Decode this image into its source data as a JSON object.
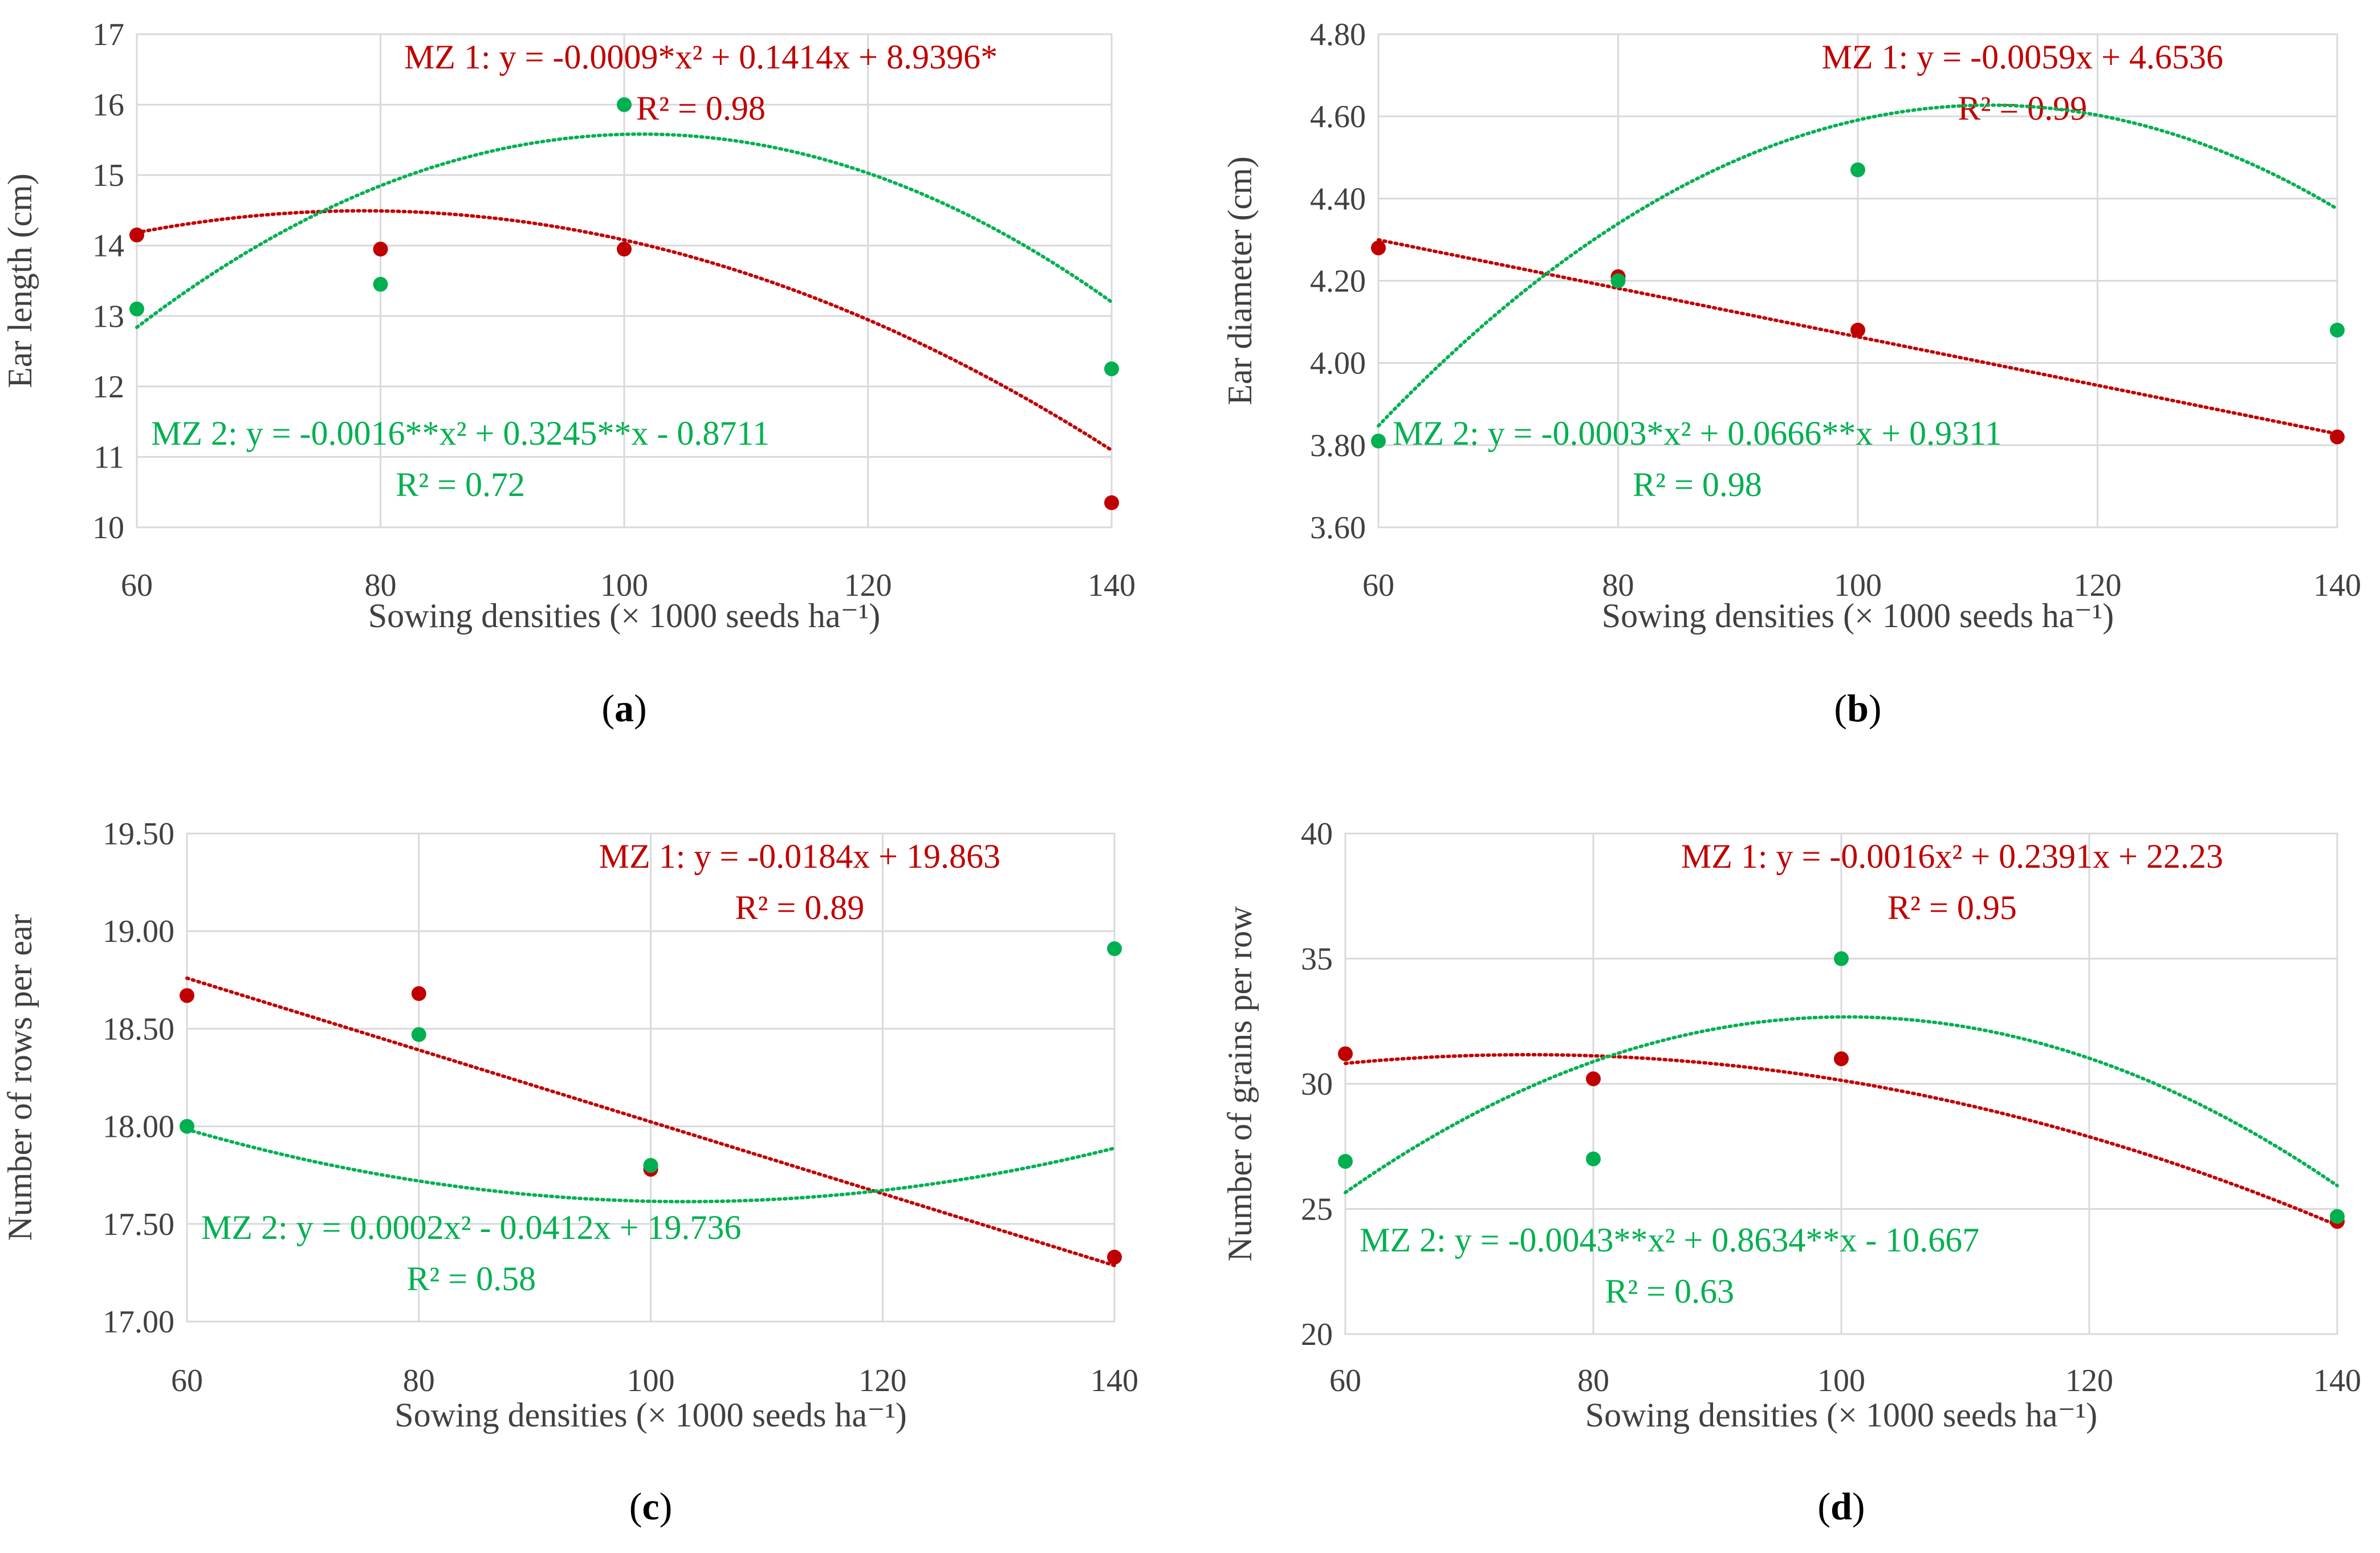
{
  "colors": {
    "mz1": "#c00000",
    "mz2": "#00b050",
    "grid": "#d9d9d9",
    "axis_text": "#404040",
    "caption": "#000000"
  },
  "chart_data": [
    {
      "id": "a",
      "type": "scatter",
      "caption_letter": "a",
      "xlabel": "Sowing densities (× 1000 seeds ha⁻¹)",
      "ylabel": "Ear length (cm)",
      "xlim": [
        60,
        140
      ],
      "ylim": [
        10,
        17
      ],
      "xticks": [
        60,
        80,
        100,
        120,
        140
      ],
      "xtick_labels": [
        "60",
        "80",
        "100",
        "120",
        "140"
      ],
      "yticks": [
        10,
        11,
        12,
        13,
        14,
        15,
        16,
        17
      ],
      "ytick_labels": [
        "10",
        "11",
        "12",
        "13",
        "14",
        "15",
        "16",
        "17"
      ],
      "series": [
        {
          "name": "MZ 1",
          "color": "#c00000",
          "x": [
            60,
            80,
            100,
            140
          ],
          "y": [
            14.15,
            13.95,
            13.95,
            10.35
          ],
          "fit": {
            "type": "poly2",
            "a": -0.0009,
            "b": 0.1414,
            "c": 8.9396
          },
          "equation": "MZ 1: y = -0.0009*x² + 0.1414x + 8.9396*",
          "r2": "R² = 0.98",
          "label_pos": "top-right"
        },
        {
          "name": "MZ 2",
          "color": "#00b050",
          "x": [
            60,
            80,
            100,
            140
          ],
          "y": [
            13.1,
            13.45,
            16.0,
            12.25
          ],
          "fit": {
            "type": "poly2",
            "a": -0.0016,
            "b": 0.3245,
            "c": -0.8711
          },
          "equation": "MZ 2: y = -0.0016**x² + 0.3245**x - 0.8711",
          "r2": "R² = 0.72",
          "label_pos": "bottom-left"
        }
      ]
    },
    {
      "id": "b",
      "type": "scatter",
      "caption_letter": "b",
      "xlabel": "Sowing densities (× 1000 seeds ha⁻¹)",
      "ylabel": "Ear diameter (cm)",
      "xlim": [
        60,
        140
      ],
      "ylim": [
        3.6,
        4.8
      ],
      "xticks": [
        60,
        80,
        100,
        120,
        140
      ],
      "xtick_labels": [
        "60",
        "80",
        "100",
        "120",
        "140"
      ],
      "yticks": [
        3.6,
        3.8,
        4.0,
        4.2,
        4.4,
        4.6,
        4.8
      ],
      "ytick_labels": [
        "3.60",
        "3.80",
        "4.00",
        "4.20",
        "4.40",
        "4.60",
        "4.80"
      ],
      "series": [
        {
          "name": "MZ 1",
          "color": "#c00000",
          "x": [
            60,
            80,
            100,
            140
          ],
          "y": [
            4.28,
            4.21,
            4.08,
            3.82
          ],
          "fit": {
            "type": "linear",
            "m": -0.0059,
            "c": 4.6536
          },
          "equation": "MZ 1: y = -0.0059x + 4.6536",
          "r2": "R² = 0.99",
          "label_pos": "top-right"
        },
        {
          "name": "MZ 2",
          "color": "#00b050",
          "x": [
            60,
            80,
            100,
            140
          ],
          "y": [
            3.81,
            4.2,
            4.47,
            4.08
          ],
          "fit": {
            "type": "poly2",
            "a": -0.0003,
            "b": 0.0666,
            "c": 0.9311
          },
          "equation": "MZ 2: y = -0.0003*x² + 0.0666**x + 0.9311",
          "r2": "R² = 0.98",
          "label_pos": "bottom-left"
        }
      ]
    },
    {
      "id": "c",
      "type": "scatter",
      "caption_letter": "c",
      "xlabel": "Sowing densities (× 1000 seeds ha⁻¹)",
      "ylabel": "Number of rows per ear",
      "xlim": [
        60,
        140
      ],
      "ylim": [
        17,
        19.5
      ],
      "xticks": [
        60,
        80,
        100,
        120,
        140
      ],
      "xtick_labels": [
        "60",
        "80",
        "100",
        "120",
        "140"
      ],
      "yticks": [
        17,
        17.5,
        18,
        18.5,
        19,
        19.5
      ],
      "ytick_labels": [
        "17.00",
        "17.50",
        "18.00",
        "18.50",
        "19.00",
        "19.50"
      ],
      "series": [
        {
          "name": "MZ 1",
          "color": "#c00000",
          "x": [
            60,
            80,
            100,
            140
          ],
          "y": [
            18.67,
            18.68,
            17.78,
            17.33
          ],
          "fit": {
            "type": "linear",
            "m": -0.0184,
            "c": 19.863
          },
          "equation": "MZ 1: y = -0.0184x + 19.863",
          "r2": "R² = 0.89",
          "label_pos": "top-right"
        },
        {
          "name": "MZ 2",
          "color": "#00b050",
          "x": [
            60,
            80,
            100,
            140
          ],
          "y": [
            18.0,
            18.47,
            17.8,
            18.91
          ],
          "fit": {
            "type": "poly2",
            "a": 0.0002,
            "b": -0.0412,
            "c": 19.736
          },
          "equation": "MZ 2: y = 0.0002x² - 0.0412x + 19.736",
          "r2": "R² = 0.58",
          "label_pos": "bottom-left"
        }
      ]
    },
    {
      "id": "d",
      "type": "scatter",
      "caption_letter": "d",
      "xlabel": "Sowing densities (× 1000 seeds ha⁻¹)",
      "ylabel": "Number of grains per row",
      "xlim": [
        60,
        140
      ],
      "ylim": [
        20,
        40
      ],
      "xticks": [
        60,
        80,
        100,
        120,
        140
      ],
      "xtick_labels": [
        "60",
        "80",
        "100",
        "120",
        "140"
      ],
      "yticks": [
        20,
        25,
        30,
        35,
        40
      ],
      "ytick_labels": [
        "20",
        "25",
        "30",
        "35",
        "40"
      ],
      "series": [
        {
          "name": "MZ 1",
          "color": "#c00000",
          "x": [
            60,
            80,
            100,
            140
          ],
          "y": [
            31.2,
            30.2,
            31.0,
            24.5
          ],
          "fit": {
            "type": "poly2",
            "a": -0.0016,
            "b": 0.2391,
            "c": 22.23
          },
          "equation": "MZ 1: y = -0.0016x² + 0.2391x + 22.23",
          "r2": "R² = 0.95",
          "label_pos": "top-right"
        },
        {
          "name": "MZ 2",
          "color": "#00b050",
          "x": [
            60,
            80,
            100,
            140
          ],
          "y": [
            26.9,
            27.0,
            35.0,
            24.7
          ],
          "fit": {
            "type": "poly2",
            "a": -0.0043,
            "b": 0.8634,
            "c": -10.667
          },
          "equation": "MZ 2: y = -0.0043**x² + 0.8634**x - 10.667",
          "r2": "R² = 0.63",
          "label_pos": "bottom-left"
        }
      ]
    }
  ]
}
